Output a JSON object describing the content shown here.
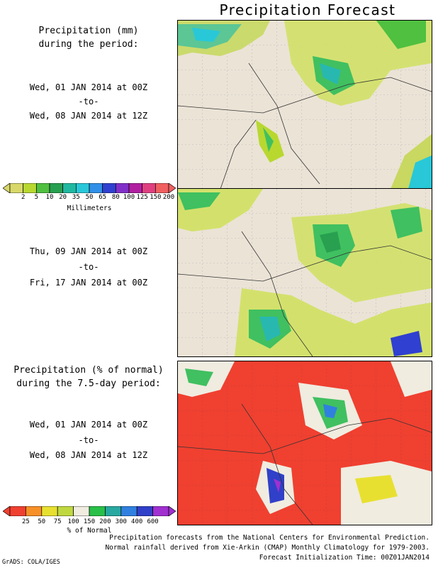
{
  "title": "Precipitation Forecast",
  "panel1": {
    "heading_1": "Precipitation (mm)",
    "heading_2": "during the period:",
    "start": "Wed, 01 JAN 2014 at 00Z",
    "to": "-to-",
    "end": "Wed, 08 JAN 2014 at 12Z"
  },
  "colorbar_mm": {
    "ticks": [
      "2",
      "5",
      "10",
      "20",
      "35",
      "50",
      "65",
      "80",
      "100",
      "125",
      "150",
      "200"
    ],
    "colors": [
      "#d8d86a",
      "#b8d830",
      "#50c040",
      "#28a050",
      "#20b8a0",
      "#28c8d8",
      "#3090e8",
      "#3040d0",
      "#8030c8",
      "#b020a0",
      "#e04080",
      "#f06060"
    ],
    "unit": "Millimeters"
  },
  "panel2": {
    "start": "Thu, 09 JAN 2014 at 00Z",
    "to": "-to-",
    "end": "Fri, 17 JAN 2014 at 00Z"
  },
  "panel3": {
    "heading_1": "Precipitation (% of normal)",
    "heading_2": "during the 7.5-day period:",
    "start": "Wed, 01 JAN 2014 at 00Z",
    "to": "-to-",
    "end": "Wed, 08 JAN 2014 at 12Z"
  },
  "colorbar_pct": {
    "ticks": [
      "25",
      "50",
      "75",
      "100",
      "150",
      "200",
      "300",
      "400",
      "600"
    ],
    "colors": [
      "#f04030",
      "#f89028",
      "#e8e030",
      "#c0d840",
      "#f0ece0",
      "#28c048",
      "#28a8a0",
      "#3080e0",
      "#3040c8",
      "#a030d0"
    ],
    "unit": "% of Normal"
  },
  "footer": {
    "line1": "Precipitation forecasts from the National Centers for Environmental Prediction.",
    "line2": "Normal rainfall derived from Xie-Arkin (CMAP) Monthly Climatology for 1979-2003.",
    "line3": "Forecast Initialization Time: 00Z01JAN2014",
    "credit": "GrADS: COLA/IGES"
  }
}
